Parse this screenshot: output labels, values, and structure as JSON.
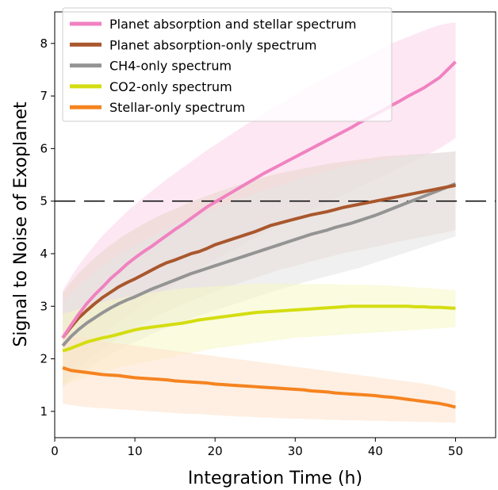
{
  "chart_data": {
    "type": "line",
    "xlabel": "Integration Time (h)",
    "ylabel": "Signal to Noise of Exoplanet",
    "xlim": [
      0,
      55
    ],
    "ylim": [
      0.5,
      8.6
    ],
    "xticks": [
      0,
      10,
      20,
      30,
      40,
      50
    ],
    "yticks": [
      1,
      2,
      3,
      4,
      5,
      6,
      7,
      8
    ],
    "grid": false,
    "legend_position": "top-left",
    "reference_line": {
      "y": 5,
      "style": "dashed",
      "color": "#000000"
    },
    "x": [
      1,
      2,
      3,
      4,
      5,
      6,
      7,
      8,
      9,
      10,
      11,
      12,
      13,
      14,
      15,
      16,
      17,
      18,
      19,
      20,
      21,
      22,
      23,
      24,
      25,
      26,
      27,
      28,
      29,
      30,
      31,
      32,
      33,
      34,
      35,
      36,
      37,
      38,
      39,
      40,
      41,
      42,
      43,
      44,
      45,
      46,
      47,
      48,
      49,
      50
    ],
    "series": [
      {
        "name": "Planet absorption and stellar spectrum",
        "color": "#f082c0",
        "band_color": "#fbd3ea",
        "values": [
          2.4,
          2.63,
          2.85,
          3.05,
          3.22,
          3.37,
          3.53,
          3.66,
          3.8,
          3.92,
          4.03,
          4.13,
          4.24,
          4.35,
          4.46,
          4.56,
          4.67,
          4.78,
          4.89,
          4.98,
          5.07,
          5.16,
          5.25,
          5.34,
          5.43,
          5.52,
          5.6,
          5.68,
          5.76,
          5.84,
          5.92,
          6.0,
          6.08,
          6.16,
          6.24,
          6.32,
          6.4,
          6.49,
          6.57,
          6.65,
          6.73,
          6.82,
          6.9,
          6.99,
          7.07,
          7.15,
          7.25,
          7.35,
          7.5,
          7.65
        ],
        "lower": [
          1.6,
          1.8,
          2.0,
          2.15,
          2.3,
          2.45,
          2.58,
          2.7,
          2.82,
          2.93,
          3.03,
          3.13,
          3.23,
          3.33,
          3.42,
          3.52,
          3.61,
          3.71,
          3.8,
          3.88,
          3.97,
          4.05,
          4.13,
          4.22,
          4.3,
          4.38,
          4.46,
          4.53,
          4.61,
          4.68,
          4.76,
          4.83,
          4.91,
          4.98,
          5.05,
          5.12,
          5.19,
          5.27,
          5.34,
          5.41,
          5.48,
          5.56,
          5.63,
          5.7,
          5.77,
          5.84,
          5.92,
          6.0,
          6.1,
          6.2
        ],
        "upper": [
          3.3,
          3.55,
          3.78,
          3.98,
          4.17,
          4.35,
          4.5,
          4.65,
          4.8,
          4.93,
          5.06,
          5.18,
          5.3,
          5.42,
          5.53,
          5.64,
          5.75,
          5.86,
          5.97,
          6.07,
          6.17,
          6.27,
          6.37,
          6.47,
          6.56,
          6.66,
          6.75,
          6.84,
          6.93,
          7.02,
          7.11,
          7.2,
          7.28,
          7.36,
          7.44,
          7.52,
          7.6,
          7.68,
          7.76,
          7.84,
          7.92,
          8.0,
          8.06,
          8.12,
          8.18,
          8.24,
          8.3,
          8.35,
          8.38,
          8.4
        ]
      },
      {
        "name": "Planet absorption-only spectrum",
        "color": "#a9572d",
        "band_color": "#e9d6cb",
        "values": [
          2.4,
          2.6,
          2.78,
          2.92,
          3.05,
          3.17,
          3.27,
          3.37,
          3.45,
          3.52,
          3.6,
          3.68,
          3.76,
          3.83,
          3.88,
          3.94,
          4.0,
          4.04,
          4.1,
          4.17,
          4.22,
          4.27,
          4.32,
          4.37,
          4.42,
          4.48,
          4.54,
          4.58,
          4.62,
          4.66,
          4.7,
          4.74,
          4.77,
          4.8,
          4.84,
          4.88,
          4.91,
          4.94,
          4.97,
          5.0,
          5.03,
          5.06,
          5.09,
          5.12,
          5.15,
          5.18,
          5.21,
          5.24,
          5.27,
          5.3
        ],
        "lower": [
          1.5,
          1.65,
          1.8,
          1.95,
          2.08,
          2.2,
          2.3,
          2.4,
          2.5,
          2.58,
          2.67,
          2.75,
          2.83,
          2.9,
          2.97,
          3.04,
          3.1,
          3.16,
          3.22,
          3.28,
          3.34,
          3.39,
          3.44,
          3.49,
          3.54,
          3.59,
          3.64,
          3.69,
          3.73,
          3.77,
          3.81,
          3.85,
          3.89,
          3.93,
          3.97,
          4.01,
          4.04,
          4.07,
          4.1,
          4.13,
          4.16,
          4.2,
          4.23,
          4.26,
          4.29,
          4.32,
          4.35,
          4.38,
          4.41,
          4.45
        ],
        "upper": [
          3.25,
          3.45,
          3.63,
          3.78,
          3.92,
          4.05,
          4.17,
          4.28,
          4.38,
          4.47,
          4.56,
          4.64,
          4.72,
          4.79,
          4.85,
          4.92,
          4.98,
          5.04,
          5.1,
          5.16,
          5.21,
          5.26,
          5.31,
          5.36,
          5.41,
          5.45,
          5.49,
          5.53,
          5.56,
          5.59,
          5.62,
          5.65,
          5.68,
          5.71,
          5.73,
          5.75,
          5.77,
          5.79,
          5.81,
          5.83,
          5.85,
          5.86,
          5.87,
          5.88,
          5.89,
          5.9,
          5.91,
          5.92,
          5.93,
          5.95
        ]
      },
      {
        "name": "CH4-only spectrum",
        "color": "#949494",
        "band_color": "#e3e3e3",
        "values": [
          2.25,
          2.42,
          2.56,
          2.68,
          2.78,
          2.88,
          2.97,
          3.05,
          3.12,
          3.18,
          3.25,
          3.32,
          3.38,
          3.44,
          3.5,
          3.56,
          3.62,
          3.67,
          3.72,
          3.77,
          3.82,
          3.87,
          3.92,
          3.97,
          4.02,
          4.07,
          4.12,
          4.17,
          4.22,
          4.27,
          4.32,
          4.37,
          4.41,
          4.45,
          4.5,
          4.54,
          4.58,
          4.63,
          4.68,
          4.73,
          4.79,
          4.85,
          4.91,
          4.97,
          5.03,
          5.09,
          5.15,
          5.21,
          5.27,
          5.33
        ],
        "lower": [
          1.45,
          1.58,
          1.7,
          1.81,
          1.91,
          2.0,
          2.09,
          2.17,
          2.25,
          2.32,
          2.39,
          2.46,
          2.53,
          2.59,
          2.65,
          2.71,
          2.77,
          2.82,
          2.87,
          2.92,
          2.97,
          3.02,
          3.07,
          3.12,
          3.17,
          3.22,
          3.27,
          3.32,
          3.36,
          3.4,
          3.45,
          3.49,
          3.53,
          3.57,
          3.61,
          3.65,
          3.69,
          3.73,
          3.78,
          3.83,
          3.88,
          3.93,
          3.98,
          4.03,
          4.08,
          4.13,
          4.18,
          4.23,
          4.28,
          4.33
        ],
        "upper": [
          3.05,
          3.22,
          3.38,
          3.52,
          3.65,
          3.77,
          3.88,
          3.98,
          4.07,
          4.16,
          4.24,
          4.32,
          4.4,
          4.48,
          4.55,
          4.62,
          4.69,
          4.75,
          4.81,
          4.87,
          4.93,
          4.99,
          5.05,
          5.1,
          5.15,
          5.2,
          5.25,
          5.3,
          5.35,
          5.4,
          5.45,
          5.49,
          5.53,
          5.57,
          5.61,
          5.65,
          5.69,
          5.72,
          5.75,
          5.78,
          5.8,
          5.82,
          5.84,
          5.86,
          5.88,
          5.9,
          5.91,
          5.92,
          5.93,
          5.95
        ]
      },
      {
        "name": "CO2-only spectrum",
        "color": "#d4dd10",
        "band_color": "#f6f8c4",
        "values": [
          2.15,
          2.2,
          2.26,
          2.32,
          2.36,
          2.4,
          2.43,
          2.47,
          2.51,
          2.55,
          2.58,
          2.6,
          2.62,
          2.64,
          2.66,
          2.68,
          2.71,
          2.74,
          2.76,
          2.78,
          2.8,
          2.82,
          2.84,
          2.86,
          2.88,
          2.89,
          2.9,
          2.91,
          2.92,
          2.93,
          2.94,
          2.95,
          2.96,
          2.97,
          2.98,
          2.99,
          3.0,
          3.0,
          3.0,
          3.0,
          3.0,
          3.0,
          3.0,
          3.0,
          2.99,
          2.99,
          2.98,
          2.98,
          2.97,
          2.96
        ],
        "lower": [
          1.5,
          1.55,
          1.6,
          1.66,
          1.71,
          1.75,
          1.79,
          1.83,
          1.87,
          1.9,
          1.93,
          1.96,
          1.99,
          2.02,
          2.05,
          2.08,
          2.11,
          2.14,
          2.17,
          2.2,
          2.22,
          2.24,
          2.26,
          2.28,
          2.3,
          2.32,
          2.34,
          2.36,
          2.38,
          2.4,
          2.41,
          2.42,
          2.43,
          2.44,
          2.45,
          2.46,
          2.47,
          2.48,
          2.49,
          2.5,
          2.51,
          2.52,
          2.53,
          2.54,
          2.55,
          2.56,
          2.57,
          2.58,
          2.59,
          2.6
        ],
        "upper": [
          2.85,
          2.9,
          2.95,
          3.0,
          3.04,
          3.08,
          3.12,
          3.15,
          3.18,
          3.21,
          3.24,
          3.26,
          3.28,
          3.3,
          3.32,
          3.34,
          3.35,
          3.36,
          3.37,
          3.38,
          3.39,
          3.4,
          3.41,
          3.42,
          3.43,
          3.43,
          3.43,
          3.43,
          3.43,
          3.43,
          3.42,
          3.42,
          3.42,
          3.42,
          3.42,
          3.41,
          3.41,
          3.41,
          3.41,
          3.4,
          3.4,
          3.39,
          3.38,
          3.37,
          3.36,
          3.35,
          3.34,
          3.33,
          3.32,
          3.3
        ]
      },
      {
        "name": "Stellar-only spectrum",
        "color": "#f5831f",
        "band_color": "#fde2ca",
        "values": [
          1.83,
          1.78,
          1.76,
          1.74,
          1.72,
          1.7,
          1.69,
          1.68,
          1.66,
          1.64,
          1.63,
          1.62,
          1.61,
          1.6,
          1.58,
          1.57,
          1.56,
          1.55,
          1.54,
          1.52,
          1.51,
          1.5,
          1.49,
          1.48,
          1.47,
          1.46,
          1.45,
          1.44,
          1.43,
          1.42,
          1.41,
          1.39,
          1.38,
          1.37,
          1.35,
          1.34,
          1.33,
          1.32,
          1.31,
          1.3,
          1.28,
          1.27,
          1.25,
          1.23,
          1.21,
          1.19,
          1.17,
          1.15,
          1.12,
          1.08
        ],
        "lower": [
          1.15,
          1.12,
          1.1,
          1.08,
          1.07,
          1.06,
          1.05,
          1.04,
          1.03,
          1.02,
          1.01,
          1.0,
          0.99,
          0.98,
          0.97,
          0.96,
          0.95,
          0.95,
          0.94,
          0.93,
          0.92,
          0.91,
          0.9,
          0.9,
          0.89,
          0.88,
          0.88,
          0.87,
          0.87,
          0.86,
          0.86,
          0.85,
          0.85,
          0.84,
          0.84,
          0.83,
          0.83,
          0.83,
          0.82,
          0.82,
          0.82,
          0.81,
          0.81,
          0.81,
          0.8,
          0.8,
          0.8,
          0.79,
          0.79,
          0.78
        ],
        "upper": [
          2.5,
          2.45,
          2.42,
          2.39,
          2.36,
          2.33,
          2.31,
          2.29,
          2.27,
          2.25,
          2.23,
          2.21,
          2.19,
          2.17,
          2.15,
          2.13,
          2.11,
          2.09,
          2.07,
          2.05,
          2.03,
          2.01,
          1.99,
          1.97,
          1.95,
          1.93,
          1.91,
          1.89,
          1.87,
          1.85,
          1.83,
          1.81,
          1.79,
          1.77,
          1.75,
          1.73,
          1.71,
          1.69,
          1.67,
          1.65,
          1.63,
          1.61,
          1.59,
          1.57,
          1.55,
          1.53,
          1.5,
          1.47,
          1.43,
          1.38
        ]
      }
    ]
  }
}
